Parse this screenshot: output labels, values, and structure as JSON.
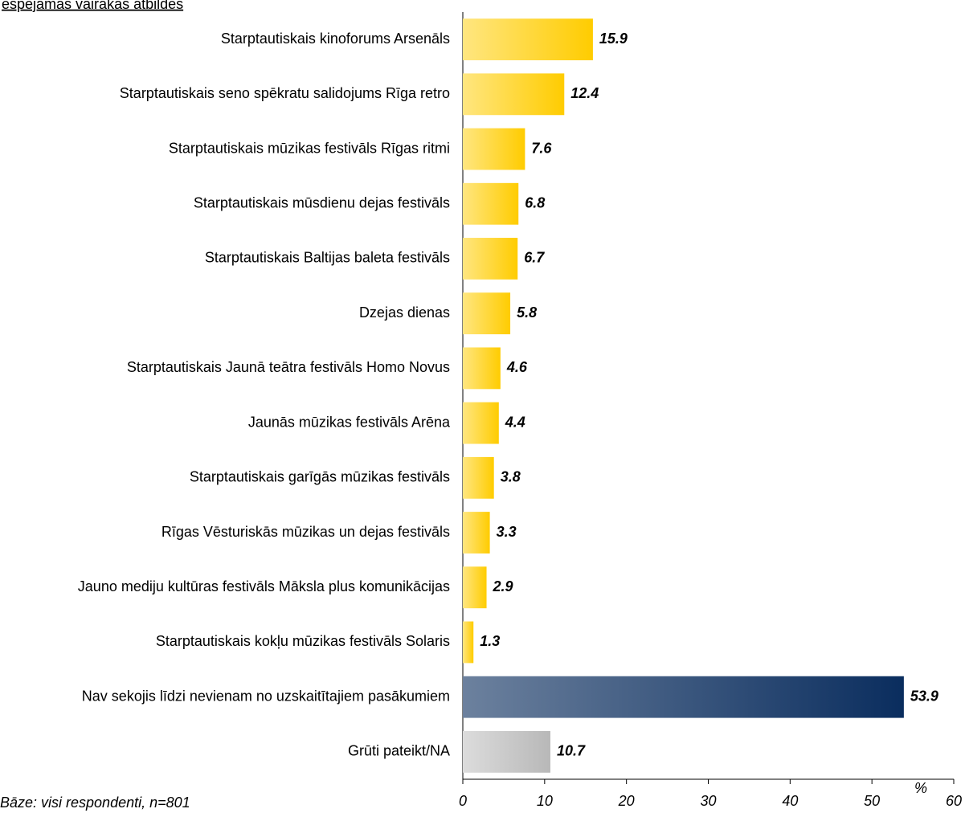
{
  "chart_data": {
    "type": "bar",
    "orientation": "horizontal",
    "title": "espējamās vairākās atbildes",
    "footnote": "Bāze: visi respondenti, n=801",
    "xlabel": "%",
    "categories": [
      "Starptautiskais kinoforums Arsenāls",
      "Starptautiskais seno spēkratu salidojums Rīga retro",
      "Starptautiskais mūzikas festivāls Rīgas ritmi",
      "Starptautiskais mūsdienu dejas festivāls",
      "Starptautiskais Baltijas baleta festivāls",
      "Dzejas dienas",
      "Starptautiskais Jaunā teātra festivāls Homo Novus",
      "Jaunās mūzikas festivāls Arēna",
      "Starptautiskais garīgās mūzikas festivāls",
      "Rīgas Vēsturiskās mūzikas un dejas festivāls",
      "Jauno mediju kultūras festivāls Māksla plus komunikācijas",
      "Starptautiskais kokļu mūzikas festivāls Solaris",
      "Nav sekojis līdzi nevienam no uzskaitītajiem pasākumiem",
      "Grūti pateikt/NA"
    ],
    "values": [
      15.9,
      12.4,
      7.6,
      6.8,
      6.7,
      5.8,
      4.6,
      4.4,
      3.8,
      3.3,
      2.9,
      1.3,
      53.9,
      10.7
    ],
    "colors": [
      "#ffcc00",
      "#ffcc00",
      "#ffcc00",
      "#ffcc00",
      "#ffcc00",
      "#ffcc00",
      "#ffcc00",
      "#ffcc00",
      "#ffcc00",
      "#ffcc00",
      "#ffcc00",
      "#ffcc00",
      "#0a2d5e",
      "#b8b8b8"
    ],
    "xlim": [
      0,
      60
    ],
    "xticks": [
      0,
      10,
      20,
      30,
      40,
      50,
      60
    ]
  }
}
